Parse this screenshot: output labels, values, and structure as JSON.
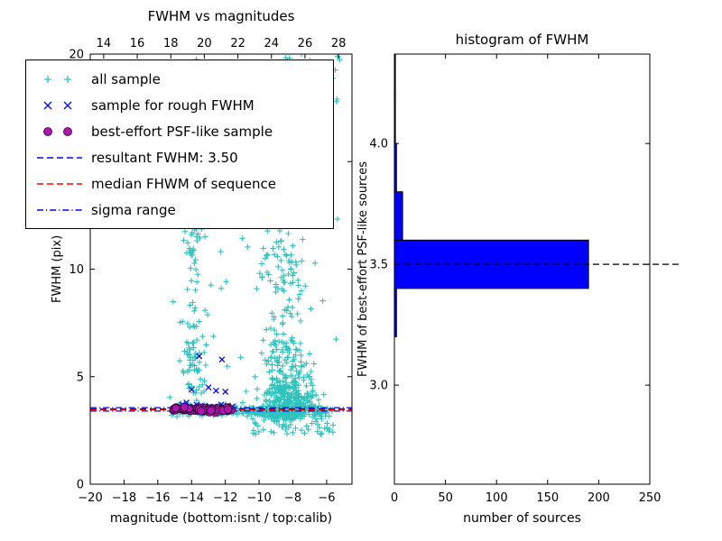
{
  "figure": {
    "background": "#ffffff"
  },
  "legend": {
    "items": [
      {
        "label": "all sample",
        "type": "marker",
        "marker": "plus",
        "color": "#2fc3bd"
      },
      {
        "label": "sample for rough FWHM",
        "type": "marker",
        "marker": "x",
        "color": "#0000ff"
      },
      {
        "label": "best-effort PSF-like sample",
        "type": "marker",
        "marker": "circle",
        "color": "#b412b4",
        "edge": "#2a002a"
      },
      {
        "label": "resultant FWHM: 3.50",
        "type": "line",
        "style": "dashed",
        "color": "#0000ff"
      },
      {
        "label": "median FHWM of sequence",
        "type": "line",
        "style": "dashed",
        "color": "#ff0000"
      },
      {
        "label": "sigma range",
        "type": "line",
        "style": "dashdot",
        "color": "#0000ff"
      }
    ]
  },
  "chart_data": [
    {
      "type": "scatter",
      "title": "FWHM vs magnitudes",
      "xlabel": "magnitude (bottom:isnt / top:calib)",
      "ylabel": "FWHM (pix)",
      "xlim": [
        -20,
        -4.5
      ],
      "xlim_top": [
        13.2,
        28.8
      ],
      "ylim": [
        0,
        20
      ],
      "xticks_bottom": [
        {
          "v": -20,
          "label": "−20"
        },
        {
          "v": -18,
          "label": "−18"
        },
        {
          "v": -16,
          "label": "−16"
        },
        {
          "v": -14,
          "label": "−14"
        },
        {
          "v": -12,
          "label": "−12"
        },
        {
          "v": -10,
          "label": "−10"
        },
        {
          "v": -8,
          "label": "−8"
        },
        {
          "v": -6,
          "label": "−6"
        }
      ],
      "xticks_top": [
        {
          "v": 14,
          "label": "14"
        },
        {
          "v": 16,
          "label": "16"
        },
        {
          "v": 18,
          "label": "18"
        },
        {
          "v": 20,
          "label": "20"
        },
        {
          "v": 22,
          "label": "22"
        },
        {
          "v": 24,
          "label": "24"
        },
        {
          "v": 26,
          "label": "26"
        },
        {
          "v": 28,
          "label": "28"
        }
      ],
      "yticks": [
        {
          "v": 0,
          "label": "0"
        },
        {
          "v": 5,
          "label": "5"
        },
        {
          "v": 10,
          "label": "10"
        },
        {
          "v": 15,
          "label": "15"
        },
        {
          "v": 20,
          "label": "20"
        }
      ],
      "series": [
        {
          "name": "all sample",
          "marker": "plus",
          "color": "#2fc3bd",
          "clusters": [
            {
              "n": 500,
              "x": {
                "dist": "normal",
                "mu": -8.4,
                "sigma": 0.8
              },
              "y": {
                "dist": "lognormal_shift",
                "shift": 2.9,
                "mu": 0.15,
                "sigma": 0.95,
                "max": 20
              }
            },
            {
              "n": 100,
              "x": {
                "dist": "normal",
                "mu": -8.6,
                "sigma": 0.5
              },
              "y": {
                "dist": "uniform",
                "min": 9,
                "max": 20
              }
            },
            {
              "n": 80,
              "x": {
                "dist": "normal",
                "mu": -13.9,
                "sigma": 0.35
              },
              "y": {
                "dist": "uniform",
                "min": 3.6,
                "max": 19.8
              }
            },
            {
              "n": 25,
              "x": {
                "dist": "normal",
                "mu": -13.9,
                "sigma": 0.4
              },
              "y": {
                "dist": "normal",
                "mu": 11.5,
                "sigma": 1.2
              }
            },
            {
              "n": 40,
              "x": {
                "dist": "normal",
                "mu": -13.8,
                "sigma": 0.4
              },
              "y": {
                "dist": "uniform",
                "min": 3.5,
                "max": 6.5
              }
            },
            {
              "n": 280,
              "x": {
                "dist": "uniform",
                "min": -15.2,
                "max": -5.6
              },
              "y": {
                "dist": "normal",
                "mu": 3.42,
                "sigma": 0.14
              }
            },
            {
              "n": 70,
              "x": {
                "dist": "uniform",
                "min": -16.2,
                "max": -5.2
              },
              "y": {
                "dist": "uniform",
                "min": 2.3,
                "max": 19.8
              }
            },
            {
              "n": 50,
              "x": {
                "dist": "uniform",
                "min": -10.5,
                "max": -5.5
              },
              "y": {
                "dist": "uniform",
                "min": 2.3,
                "max": 3.25
              }
            },
            {
              "n": 18,
              "x": {
                "dist": "uniform",
                "min": -7.3,
                "max": -5.1
              },
              "y": {
                "dist": "uniform",
                "min": 18.4,
                "max": 19.95
              }
            }
          ]
        },
        {
          "name": "sample for rough FWHM",
          "marker": "x",
          "color": "#0000ff",
          "points": [
            [
              -14.55,
              3.7
            ],
            [
              -14.3,
              3.8
            ],
            [
              -14.0,
              4.4
            ],
            [
              -13.9,
              3.6
            ],
            [
              -13.7,
              3.7
            ],
            [
              -13.55,
              5.95
            ],
            [
              -13.2,
              3.65
            ],
            [
              -13.0,
              4.5
            ],
            [
              -12.7,
              3.6
            ],
            [
              -12.55,
              4.35
            ],
            [
              -12.25,
              3.7
            ],
            [
              -12.2,
              5.8
            ],
            [
              -12.0,
              4.3
            ],
            [
              -11.85,
              3.65
            ],
            [
              -11.6,
              3.6
            ]
          ]
        },
        {
          "name": "best-effort PSF-like sample",
          "marker": "circle",
          "color": "#b412b4",
          "edge": "#2a002a",
          "clusters": [
            {
              "n": 80,
              "x": {
                "dist": "uniform",
                "min": -15.1,
                "max": -11.6
              },
              "y": {
                "dist": "normal",
                "mu": 3.47,
                "sigma": 0.055
              }
            }
          ]
        }
      ],
      "hlines": [
        {
          "name": "resultant FWHM: 3.50",
          "ys": [
            3.5
          ],
          "color": "#0000ff",
          "style": "dashed"
        },
        {
          "name": "median FHWM of sequence",
          "ys": [
            3.46
          ],
          "color": "#ff0000",
          "style": "dashed"
        },
        {
          "name": "sigma range",
          "ys": [
            3.56,
            3.4
          ],
          "color": "#0000ff",
          "style": "dashdot"
        }
      ]
    },
    {
      "type": "bar",
      "orientation": "horizontal",
      "title": "histogram of FWHM",
      "xlabel": "number of sources",
      "ylabel": "FWHM of best-effort PSF-like sources",
      "xlim": [
        0,
        250
      ],
      "ylim": [
        2.59,
        4.37
      ],
      "xticks": [
        {
          "v": 0,
          "label": "0"
        },
        {
          "v": 50,
          "label": "50"
        },
        {
          "v": 100,
          "label": "100"
        },
        {
          "v": 150,
          "label": "150"
        },
        {
          "v": 200,
          "label": "200"
        },
        {
          "v": 250,
          "label": "250"
        }
      ],
      "yticks": [
        {
          "v": 3.0,
          "label": "3.0"
        },
        {
          "v": 3.5,
          "label": "3.5"
        },
        {
          "v": 4.0,
          "label": "4.0"
        }
      ],
      "bar_color": "#0000ff",
      "bar_edge": "#000000",
      "bins": {
        "edges": [
          3.2,
          3.4,
          3.6,
          3.8,
          4.0,
          4.2,
          4.4
        ],
        "counts": [
          2,
          190,
          8,
          2,
          1,
          1
        ]
      },
      "hline": {
        "y": 3.5,
        "color": "#000000",
        "style": "dashed"
      }
    }
  ]
}
